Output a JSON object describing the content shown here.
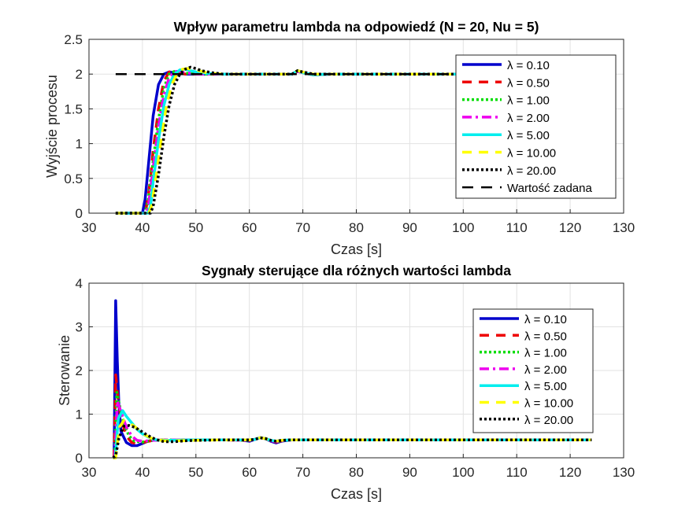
{
  "chart_data": [
    {
      "type": "line",
      "title": "Wpływ parametru lambda na odpowiedź (N = 20, Nu = 5)",
      "xlabel": "Czas [s]",
      "ylabel": "Wyjście procesu",
      "xlim": [
        30,
        130
      ],
      "ylim": [
        0,
        2.5
      ],
      "xticks": [
        "30",
        "40",
        "50",
        "60",
        "70",
        "80",
        "90",
        "100",
        "110",
        "120",
        "130"
      ],
      "yticks": [
        "0",
        "0.5",
        "1",
        "1.5",
        "2",
        "2.5"
      ],
      "grid": true,
      "legend_position": "top-right",
      "legend": [
        "λ = 0.10",
        "λ = 0.50",
        "λ = 1.00",
        "λ = 2.00",
        "λ = 5.00",
        "λ = 10.00",
        "λ = 20.00",
        "Wartość zadana"
      ],
      "series": [
        {
          "name": "λ = 0.10",
          "color": "#0000cc",
          "style": "solid",
          "x": [
            35,
            40,
            40.5,
            41,
            41.5,
            42,
            43,
            44,
            45,
            46,
            48,
            50,
            55,
            60,
            65,
            68,
            69,
            70,
            72,
            75,
            80,
            90,
            100
          ],
          "y": [
            0,
            0,
            0.2,
            0.6,
            1.0,
            1.4,
            1.85,
            2.0,
            2.03,
            2.02,
            2.0,
            2.0,
            2.0,
            2.0,
            2.0,
            2.0,
            2.04,
            2.02,
            1.99,
            2.0,
            2.0,
            2.0,
            2.0
          ]
        },
        {
          "name": "λ = 0.50",
          "color": "#ee0000",
          "style": "dashed",
          "x": [
            35,
            40.5,
            41,
            41.5,
            42,
            43,
            44,
            45,
            46,
            48,
            50,
            55,
            60,
            65,
            68,
            69,
            70,
            72,
            75,
            80,
            90,
            100
          ],
          "y": [
            0,
            0,
            0.2,
            0.5,
            0.9,
            1.5,
            1.9,
            2.03,
            2.03,
            2.0,
            2.0,
            2.0,
            2.0,
            2.0,
            2.0,
            2.04,
            2.02,
            1.99,
            2.0,
            2.0,
            2.0,
            2.0
          ]
        },
        {
          "name": "λ = 1.00",
          "color": "#00dd00",
          "style": "dotted",
          "x": [
            35,
            40.5,
            41,
            42,
            43,
            44,
            45,
            46,
            47,
            50,
            55,
            60,
            65,
            68,
            69,
            70,
            72,
            75,
            80,
            90,
            100
          ],
          "y": [
            0,
            0,
            0.15,
            0.75,
            1.35,
            1.8,
            2.0,
            2.04,
            2.02,
            2.0,
            2.0,
            2.0,
            2.0,
            2.0,
            2.04,
            2.02,
            1.99,
            2.0,
            2.0,
            2.0,
            2.0
          ]
        },
        {
          "name": "λ = 2.00",
          "color": "#ee00ee",
          "style": "dashdot",
          "x": [
            35,
            40.7,
            41.2,
            42,
            43,
            44,
            45,
            46,
            47,
            48,
            50,
            55,
            60,
            65,
            68,
            69,
            70,
            72,
            75,
            80,
            90,
            100
          ],
          "y": [
            0,
            0,
            0.15,
            0.65,
            1.25,
            1.7,
            1.95,
            2.04,
            2.04,
            2.02,
            2.0,
            2.0,
            2.0,
            2.0,
            2.0,
            2.04,
            2.02,
            1.99,
            2.0,
            2.0,
            2.0,
            2.0
          ]
        },
        {
          "name": "λ = 5.00",
          "color": "#00eeee",
          "style": "solid",
          "x": [
            35,
            41,
            41.5,
            42,
            43,
            44,
            45,
            46,
            47,
            48,
            49,
            50,
            52,
            55,
            60,
            65,
            68,
            69,
            70,
            72,
            75,
            80,
            90,
            100
          ],
          "y": [
            0,
            0,
            0.1,
            0.45,
            1.05,
            1.55,
            1.85,
            2.0,
            2.06,
            2.07,
            2.05,
            2.03,
            2.01,
            2.0,
            2.0,
            2.0,
            2.0,
            2.05,
            2.02,
            1.99,
            2.0,
            2.0,
            2.0,
            2.0
          ]
        },
        {
          "name": "λ = 10.00",
          "color": "#ffff00",
          "style": "dashed",
          "x": [
            35,
            41.2,
            41.7,
            42.5,
            43.5,
            44.5,
            45.5,
            46.5,
            47.5,
            48.5,
            50,
            52,
            55,
            60,
            65,
            68,
            69,
            70,
            72,
            75,
            80,
            90,
            100
          ],
          "y": [
            0,
            0,
            0.1,
            0.5,
            1.05,
            1.55,
            1.85,
            2.01,
            2.07,
            2.08,
            2.06,
            2.02,
            2.0,
            2.0,
            2.0,
            2.0,
            2.05,
            2.03,
            2.0,
            2.0,
            2.0,
            2.0,
            2.0
          ]
        },
        {
          "name": "λ = 20.00",
          "color": "#000000",
          "style": "dotted",
          "x": [
            35,
            41.5,
            42,
            43,
            44,
            45,
            46,
            47,
            48,
            49,
            50,
            51,
            53,
            55,
            60,
            65,
            68,
            69,
            70,
            72,
            75,
            80,
            90,
            100
          ],
          "y": [
            0,
            0,
            0.1,
            0.55,
            1.1,
            1.55,
            1.85,
            2.0,
            2.07,
            2.1,
            2.08,
            2.05,
            2.02,
            2.0,
            2.0,
            2.0,
            2.0,
            2.05,
            2.03,
            2.0,
            2.0,
            2.0,
            2.0,
            2.0
          ]
        },
        {
          "name": "Wartość zadana",
          "color": "#000000",
          "style": "longdash",
          "x": [
            35,
            100
          ],
          "y": [
            2.0,
            2.0
          ]
        }
      ]
    },
    {
      "type": "line",
      "title": "Sygnały sterujące dla różnych wartości lambda",
      "xlabel": "Czas [s]",
      "ylabel": "Sterowanie",
      "xlim": [
        30,
        130
      ],
      "ylim": [
        0,
        4
      ],
      "xticks": [
        "30",
        "40",
        "50",
        "60",
        "70",
        "80",
        "90",
        "100",
        "110",
        "120",
        "130"
      ],
      "yticks": [
        "0",
        "1",
        "2",
        "3",
        "4"
      ],
      "grid": true,
      "legend_position": "top-right",
      "legend": [
        "λ = 0.10",
        "λ = 0.50",
        "λ = 1.00",
        "λ = 2.00",
        "λ = 5.00",
        "λ = 10.00",
        "λ = 20.00"
      ],
      "series": [
        {
          "name": "λ = 0.10",
          "color": "#0000cc",
          "style": "solid",
          "x": [
            34.5,
            34.7,
            35.0,
            35.3,
            35.6,
            36.0,
            37.0,
            38.0,
            39.0,
            40.0,
            41.0,
            42.0,
            44.0,
            46.0,
            50.0,
            55.0,
            58.0,
            60.0,
            61.0,
            62.0,
            63.0,
            64.0,
            65.0,
            66.0,
            68.0,
            70.0,
            80.0,
            100.0,
            124.0
          ],
          "y": [
            0.0,
            0.0,
            3.6,
            2.2,
            1.2,
            0.6,
            0.35,
            0.28,
            0.28,
            0.33,
            0.38,
            0.4,
            0.4,
            0.4,
            0.41,
            0.41,
            0.41,
            0.38,
            0.42,
            0.46,
            0.44,
            0.38,
            0.34,
            0.38,
            0.41,
            0.41,
            0.41,
            0.41,
            0.41
          ]
        },
        {
          "name": "λ = 0.50",
          "color": "#ee0000",
          "style": "dashed",
          "x": [
            34.5,
            34.7,
            35.0,
            35.5,
            36.0,
            37.0,
            38.0,
            39.0,
            40.0,
            42.0,
            45.0,
            50.0,
            55.0,
            60.0,
            61.0,
            62.0,
            63.0,
            64.0,
            65.0,
            66.0,
            68.0,
            80.0,
            100.0,
            124.0
          ],
          "y": [
            0.0,
            0.0,
            1.9,
            1.3,
            0.9,
            0.5,
            0.35,
            0.32,
            0.35,
            0.4,
            0.41,
            0.41,
            0.41,
            0.4,
            0.42,
            0.46,
            0.44,
            0.39,
            0.36,
            0.39,
            0.41,
            0.41,
            0.41,
            0.41
          ]
        },
        {
          "name": "λ = 1.00",
          "color": "#00dd00",
          "style": "dotted",
          "x": [
            34.5,
            34.8,
            35.2,
            35.8,
            36.5,
            37.5,
            38.5,
            40.0,
            42.0,
            45.0,
            50.0,
            55.0,
            60.0,
            61.0,
            62.0,
            63.0,
            64.0,
            65.0,
            66.0,
            68.0,
            80.0,
            100.0,
            124.0
          ],
          "y": [
            0.0,
            0.0,
            1.5,
            1.15,
            0.8,
            0.5,
            0.38,
            0.36,
            0.4,
            0.41,
            0.41,
            0.41,
            0.4,
            0.42,
            0.46,
            0.44,
            0.39,
            0.37,
            0.39,
            0.41,
            0.41,
            0.41,
            0.41
          ]
        },
        {
          "name": "λ = 2.00",
          "color": "#ee00ee",
          "style": "dashdot",
          "x": [
            34.5,
            34.8,
            35.3,
            36.0,
            37.0,
            38.0,
            39.0,
            40.0,
            42.0,
            45.0,
            50.0,
            55.0,
            60.0,
            61.0,
            62.0,
            63.0,
            64.0,
            65.0,
            66.0,
            68.0,
            80.0,
            100.0,
            124.0
          ],
          "y": [
            0.0,
            0.0,
            1.3,
            1.05,
            0.7,
            0.5,
            0.4,
            0.38,
            0.4,
            0.41,
            0.41,
            0.41,
            0.4,
            0.42,
            0.46,
            0.44,
            0.39,
            0.37,
            0.39,
            0.41,
            0.41,
            0.41,
            0.41
          ]
        },
        {
          "name": "λ = 5.00",
          "color": "#00eeee",
          "style": "solid",
          "x": [
            34.5,
            34.9,
            35.5,
            36.3,
            37.0,
            38.0,
            39.0,
            40.0,
            41.0,
            42.0,
            43.0,
            45.0,
            50.0,
            55.0,
            60.0,
            61.0,
            62.0,
            63.0,
            64.0,
            65.0,
            66.0,
            68.0,
            80.0,
            100.0,
            124.0
          ],
          "y": [
            0.0,
            0.0,
            0.9,
            1.08,
            0.95,
            0.8,
            0.65,
            0.55,
            0.48,
            0.43,
            0.4,
            0.4,
            0.41,
            0.41,
            0.41,
            0.42,
            0.46,
            0.44,
            0.4,
            0.38,
            0.4,
            0.41,
            0.41,
            0.41,
            0.41
          ]
        },
        {
          "name": "λ = 10.00",
          "color": "#ffff00",
          "style": "dashed",
          "x": [
            34.5,
            35.0,
            35.7,
            36.5,
            37.5,
            38.5,
            39.5,
            40.5,
            42.0,
            44.0,
            46.0,
            50.0,
            55.0,
            60.0,
            61.0,
            62.0,
            63.0,
            64.0,
            65.0,
            66.0,
            68.0,
            80.0,
            100.0,
            124.0
          ],
          "y": [
            0.0,
            0.0,
            0.7,
            0.85,
            0.8,
            0.72,
            0.62,
            0.52,
            0.43,
            0.39,
            0.39,
            0.4,
            0.41,
            0.41,
            0.42,
            0.46,
            0.44,
            0.4,
            0.38,
            0.4,
            0.41,
            0.41,
            0.41,
            0.41
          ]
        },
        {
          "name": "λ = 20.00",
          "color": "#000000",
          "style": "dotted",
          "x": [
            34.5,
            35.0,
            35.6,
            36.5,
            37.5,
            38.5,
            39.5,
            40.5,
            41.5,
            42.5,
            44.0,
            46.0,
            48.0,
            50.0,
            55.0,
            60.0,
            61.0,
            62.0,
            63.0,
            64.0,
            65.0,
            66.0,
            68.0,
            80.0,
            100.0,
            124.0
          ],
          "y": [
            0.0,
            0.05,
            0.45,
            0.72,
            0.74,
            0.7,
            0.63,
            0.55,
            0.48,
            0.42,
            0.37,
            0.37,
            0.39,
            0.4,
            0.41,
            0.41,
            0.42,
            0.46,
            0.44,
            0.4,
            0.38,
            0.4,
            0.41,
            0.41,
            0.41,
            0.41
          ]
        }
      ]
    }
  ]
}
